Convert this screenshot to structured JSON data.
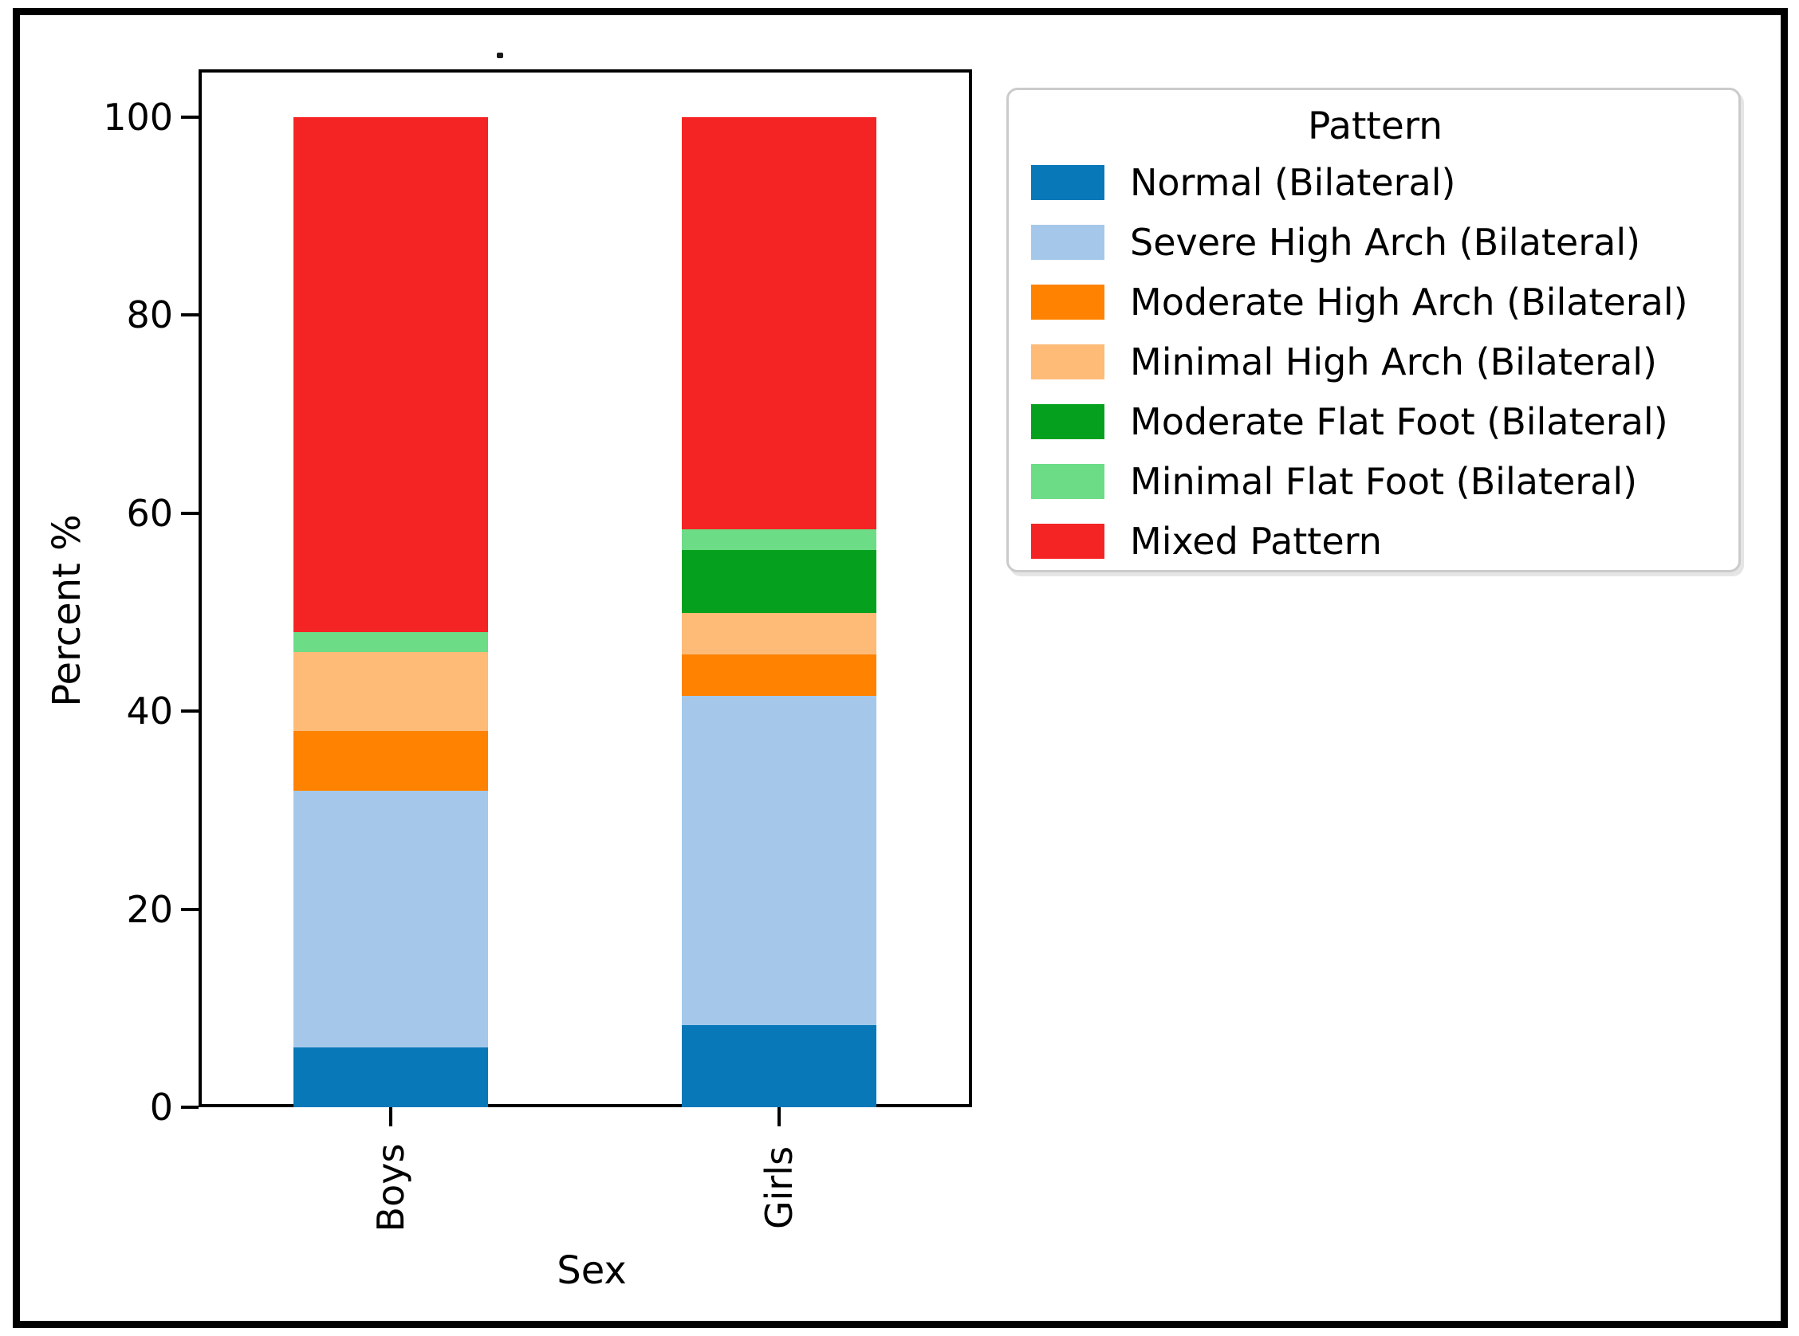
{
  "figure": {
    "background": "#ffffff",
    "frame_color": "#000000",
    "stray_mark": "."
  },
  "chart_data": {
    "type": "bar",
    "stacked": true,
    "orientation": "vertical",
    "xlabel": "Sex",
    "ylabel": "Percent %",
    "categories": [
      "Boys",
      "Girls"
    ],
    "series": [
      {
        "name": "Normal (Bilateral)",
        "color": "#0878b8",
        "values": [
          6,
          8.3
        ]
      },
      {
        "name": "Severe High Arch (Bilateral)",
        "color": "#a5c8ea",
        "values": [
          26,
          33.3
        ]
      },
      {
        "name": "Moderate High Arch (Bilateral)",
        "color": "#ff8200",
        "values": [
          6,
          4.2
        ]
      },
      {
        "name": "Minimal High Arch (Bilateral)",
        "color": "#fdbb77",
        "values": [
          8,
          4.2
        ]
      },
      {
        "name": "Moderate Flat Foot (Bilateral)",
        "color": "#05a11e",
        "values": [
          0,
          6.3
        ]
      },
      {
        "name": "Minimal Flat Foot (Bilateral)",
        "color": "#6cdc87",
        "values": [
          2,
          2.1
        ]
      },
      {
        "name": "Mixed Pattern",
        "color": "#f52424",
        "values": [
          52,
          41.7
        ]
      }
    ],
    "y_ticks": [
      0,
      20,
      40,
      60,
      80,
      100
    ],
    "y_tick_labels": [
      "0",
      "20",
      "40",
      "60",
      "80",
      "100"
    ],
    "ylim": [
      0,
      104.7
    ],
    "grid": false,
    "legend_title": "Pattern",
    "legend_position": "outside-upper-right",
    "axis_color": "#000000"
  }
}
